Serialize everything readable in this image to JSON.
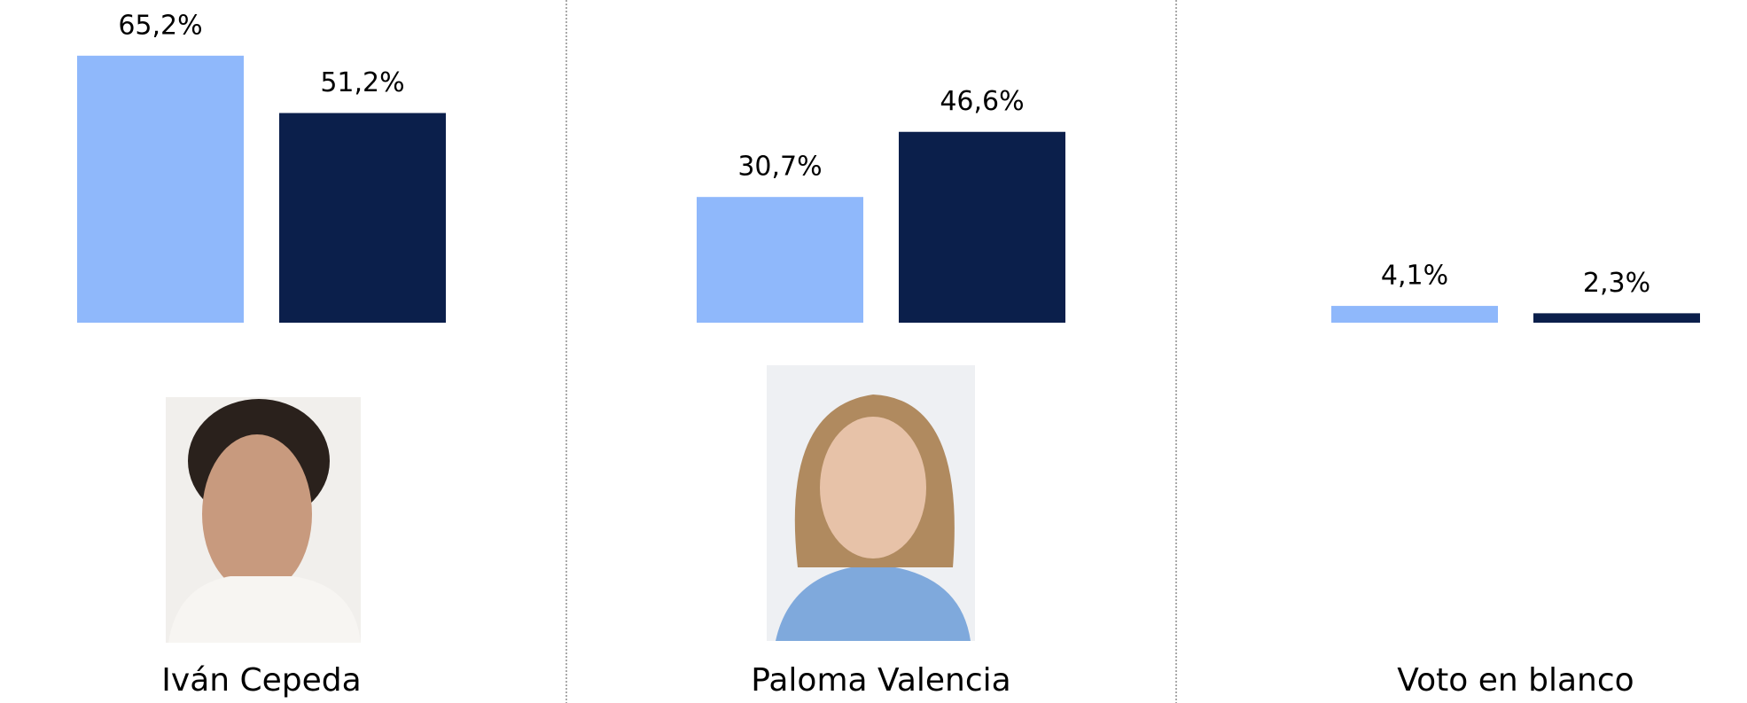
{
  "chart_data": {
    "type": "bar",
    "categories": [
      "Iván Cepeda",
      "Paloma Valencia",
      "Voto en blanco"
    ],
    "series": [
      {
        "color": "#8fb8fb",
        "values": [
          65.2,
          30.7,
          4.1
        ],
        "value_labels": [
          "65,2%",
          "30,7%",
          "4,1%"
        ]
      },
      {
        "color": "#0b1f4b",
        "values": [
          51.2,
          46.6,
          2.3
        ],
        "value_labels": [
          "51,2%",
          "46,6%",
          "2,3%"
        ]
      }
    ],
    "ylim": [
      0,
      78.8
    ]
  }
}
